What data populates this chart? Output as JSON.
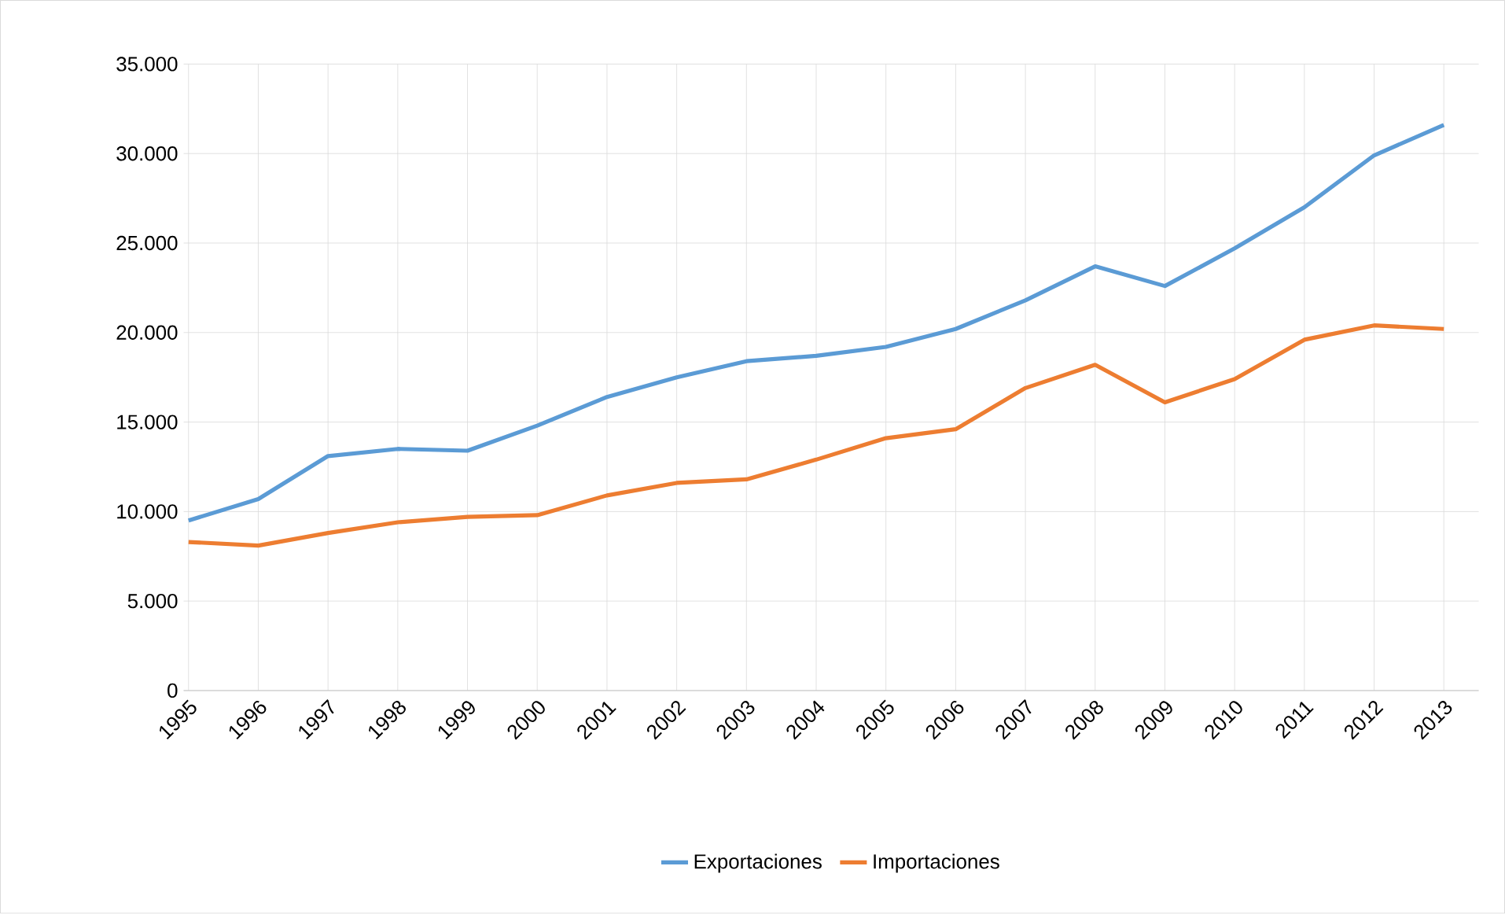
{
  "chart_data": {
    "type": "line",
    "categories": [
      "1995",
      "1996",
      "1997",
      "1998",
      "1999",
      "2000",
      "2001",
      "2002",
      "2003",
      "2004",
      "2005",
      "2006",
      "2007",
      "2008",
      "2009",
      "2010",
      "2011",
      "2012",
      "2013"
    ],
    "series": [
      {
        "name": "Exportaciones",
        "color": "#5b9bd5",
        "values": [
          9500,
          10700,
          13100,
          13500,
          13400,
          14800,
          16400,
          17500,
          18400,
          18700,
          19200,
          20200,
          21800,
          23700,
          22600,
          24700,
          27000,
          29900,
          31600
        ]
      },
      {
        "name": "Importaciones",
        "color": "#ed7d31",
        "values": [
          8300,
          8100,
          8800,
          9400,
          9700,
          9800,
          10900,
          11600,
          11800,
          12900,
          14100,
          14600,
          16900,
          18200,
          16100,
          17400,
          19600,
          20400,
          20200
        ]
      }
    ],
    "ylim": [
      0,
      35000
    ],
    "yticks": [
      0,
      {
        "value": 5000,
        "label": "5.000"
      },
      {
        "value": 10000,
        "label": "10.000"
      },
      {
        "value": 15000,
        "label": "15.000"
      },
      {
        "value": 20000,
        "label": "20.000"
      },
      {
        "value": 25000,
        "label": "25.000"
      },
      {
        "value": 30000,
        "label": "30.000"
      },
      {
        "value": 35000,
        "label": "35.000"
      }
    ],
    "grid": true,
    "legend": "bottom"
  }
}
